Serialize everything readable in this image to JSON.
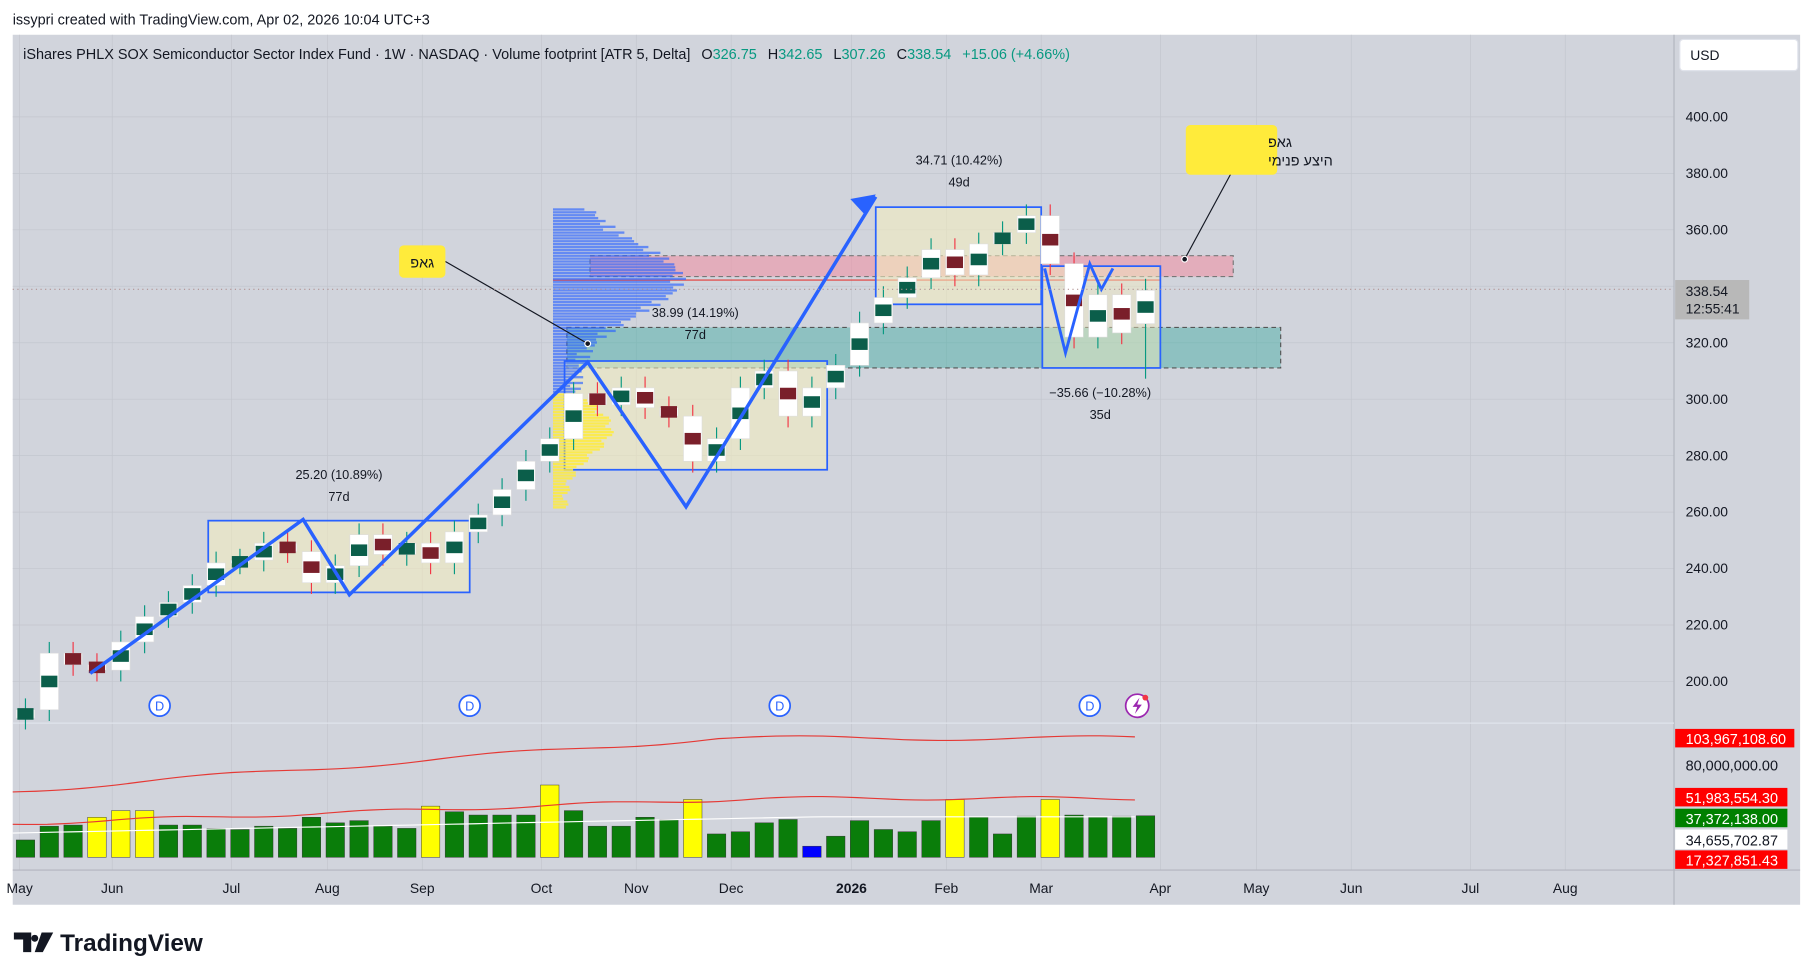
{
  "header": {
    "credit": "issypri created with TradingView.com, Apr 02, 2026 10:04 UTC+3"
  },
  "legend": {
    "title": "iShares PHLX SOX Semiconductor Sector Index Fund · 1W · NASDAQ · Volume footprint [ATR 5, Delta]",
    "o_label": "O",
    "o": "326.75",
    "h_label": "H",
    "h": "342.65",
    "l_label": "L",
    "l": "307.26",
    "c_label": "C",
    "c": "338.54",
    "change": "+15.06 (+4.66%)"
  },
  "currency_button": "USD",
  "price_axis": {
    "ticks": [
      "400.00",
      "380.00",
      "360.00",
      "340.00",
      "320.00",
      "300.00",
      "280.00",
      "260.00",
      "240.00",
      "220.00",
      "200.00"
    ],
    "last_price": "338.54",
    "countdown": "12:55:41"
  },
  "volume_axis": {
    "ma_upper": "103,967,108.60",
    "tick": "80,000,000.00",
    "ma_lower": "51,983,554.30",
    "volume": "37,372,138.00",
    "avg": "34,655,702.87",
    "low_band": "17,327,851.43"
  },
  "time_axis": [
    "May",
    "Jun",
    "Jul",
    "Aug",
    "Sep",
    "Oct",
    "Nov",
    "Dec",
    "2026",
    "Feb",
    "Mar",
    "Apr",
    "May",
    "Jun",
    "Jul",
    "Aug"
  ],
  "annotations": {
    "range1": {
      "change": "25.20 (10.89%)",
      "duration": "77d"
    },
    "range2": {
      "change": "38.99 (14.19%)",
      "duration": "77d"
    },
    "range3": {
      "change": "34.71 (10.42%)",
      "duration": "49d"
    },
    "range4": {
      "change": "−35.66 (−10.28%)",
      "duration": "35d"
    },
    "note_gap": "גאפ",
    "note_gap2_line1": "גאפ",
    "note_gap2_line2": "היצע פנימי",
    "dividend_marker": "D"
  },
  "logo": "TradingView",
  "colors": {
    "up": "#0b5e4a",
    "down": "#7a1f2a",
    "volume": "#0a7d0a",
    "volume_high": "#ffff00",
    "volume_low": "#0000ff",
    "ma": "#e53935",
    "drawing": "#2962ff",
    "accent_green": "#089981"
  },
  "chart_data": {
    "type": "candlestick",
    "title": "iShares PHLX SOX Semiconductor Sector Index Fund · 1W · NASDAQ",
    "ylim": [
      185,
      410
    ],
    "close": [
      190,
      210,
      206,
      204,
      214,
      223,
      228,
      234,
      242,
      243,
      249,
      246,
      235,
      241,
      252,
      245,
      249,
      242,
      253,
      259,
      268,
      278,
      286,
      302,
      298,
      304,
      297,
      294,
      278,
      286,
      304,
      310,
      294,
      304,
      312,
      327,
      336,
      343,
      353,
      344,
      355,
      359,
      365,
      348,
      322,
      337,
      323.48,
      338.54
    ],
    "last_ohlc": [
      326.75,
      342.65,
      307.26,
      338.54
    ],
    "volume_millions": [
      15.6,
      28,
      29,
      36,
      42,
      42,
      29,
      29,
      26,
      25,
      28,
      26,
      36,
      31,
      33,
      28,
      26,
      46,
      41,
      38,
      38,
      38,
      65,
      42,
      28,
      28,
      36,
      34,
      52,
      21,
      23,
      31,
      34,
      10,
      19,
      33,
      25,
      23,
      33,
      52,
      36,
      21,
      37,
      52,
      38,
      36,
      37,
      37.37
    ],
    "volume_high_idx": [
      3,
      4,
      5,
      17,
      22,
      28,
      39,
      43
    ],
    "volume_low_idx": [
      33
    ],
    "zones": {
      "gap_supply": [
        344,
        351
      ],
      "gap": [
        312,
        325
      ]
    }
  }
}
